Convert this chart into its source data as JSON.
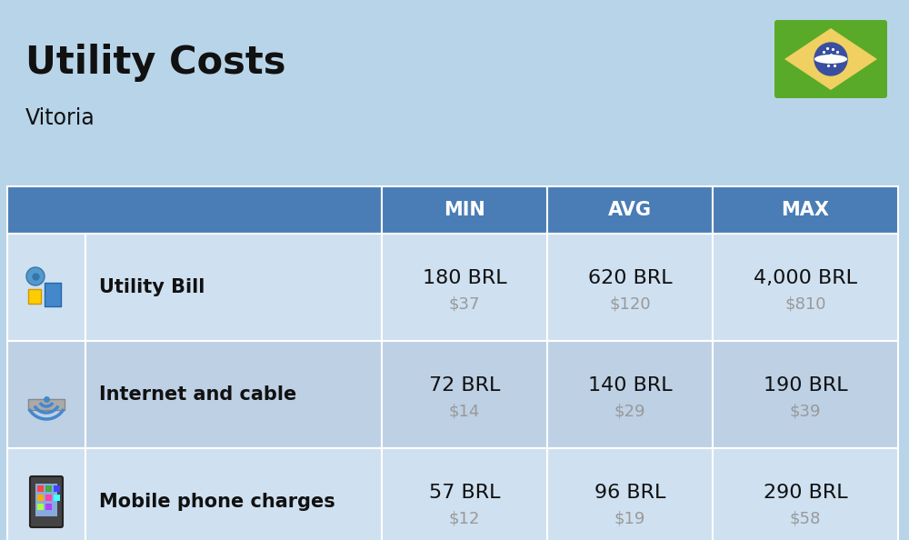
{
  "title": "Utility Costs",
  "subtitle": "Vitoria",
  "background_color": "#b8d4e8",
  "header_bg_color": "#4a7db5",
  "header_text_color": "#ffffff",
  "row_bg_color_light": "#cfe0f0",
  "row_bg_color_dark": "#bdd0e4",
  "col_header_labels": [
    "MIN",
    "AVG",
    "MAX"
  ],
  "rows": [
    {
      "label": "Utility Bill",
      "min_brl": "180 BRL",
      "min_usd": "$37",
      "avg_brl": "620 BRL",
      "avg_usd": "$120",
      "max_brl": "4,000 BRL",
      "max_usd": "$810"
    },
    {
      "label": "Internet and cable",
      "min_brl": "72 BRL",
      "min_usd": "$14",
      "avg_brl": "140 BRL",
      "avg_usd": "$29",
      "max_brl": "190 BRL",
      "max_usd": "$39"
    },
    {
      "label": "Mobile phone charges",
      "min_brl": "57 BRL",
      "min_usd": "$12",
      "avg_brl": "96 BRL",
      "avg_usd": "$19",
      "max_brl": "290 BRL",
      "max_usd": "$58"
    }
  ],
  "title_fontsize": 30,
  "subtitle_fontsize": 17,
  "header_fontsize": 15,
  "label_fontsize": 15,
  "value_fontsize": 16,
  "usd_fontsize": 13,
  "flag_green": "#5aaa2a",
  "flag_yellow": "#f0d060",
  "flag_blue": "#3a4fa0",
  "text_color": "#111111",
  "usd_color": "#999999"
}
